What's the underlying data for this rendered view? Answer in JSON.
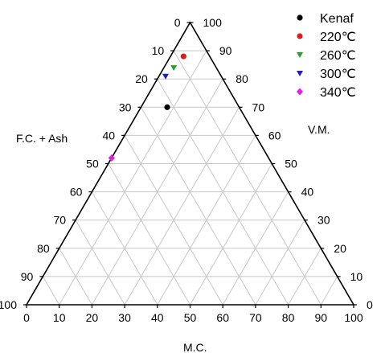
{
  "chart_data": {
    "type": "ternary-scatter",
    "axes": {
      "bottom": {
        "label": "M.C.",
        "ticks": [
          "0",
          "10",
          "20",
          "30",
          "40",
          "50",
          "60",
          "70",
          "80",
          "90",
          "100"
        ]
      },
      "left": {
        "label": "F.C. + Ash",
        "ticks": [
          "0",
          "10",
          "20",
          "30",
          "40",
          "50",
          "60",
          "70",
          "80",
          "90",
          "100"
        ]
      },
      "right": {
        "label": "V.M.",
        "ticks": [
          "0",
          "10",
          "20",
          "30",
          "40",
          "50",
          "60",
          "70",
          "80",
          "90",
          "100"
        ]
      },
      "range": [
        0,
        100
      ],
      "grid_step": 10
    },
    "grid": true,
    "legend_position": "top-right",
    "series": [
      {
        "name": "Kenaf",
        "marker": "circle",
        "color": "#000000",
        "points": [
          {
            "fc_ash": 22,
            "mc": 8,
            "vm": 70
          }
        ]
      },
      {
        "name": "220℃",
        "marker": "circle",
        "color": "#e31a1c",
        "points": [
          {
            "fc_ash": 8,
            "mc": 4,
            "vm": 88
          }
        ]
      },
      {
        "name": "260℃",
        "marker": "triangle-down",
        "color": "#2ca02c",
        "points": [
          {
            "fc_ash": 13,
            "mc": 3,
            "vm": 84
          }
        ]
      },
      {
        "name": "300℃",
        "marker": "triangle-down",
        "color": "#1f1fb4",
        "points": [
          {
            "fc_ash": 17,
            "mc": 2,
            "vm": 81
          }
        ]
      },
      {
        "name": "340℃",
        "marker": "diamond",
        "color": "#e020e0",
        "points": [
          {
            "fc_ash": 48,
            "mc": 0,
            "vm": 52
          }
        ]
      }
    ]
  }
}
